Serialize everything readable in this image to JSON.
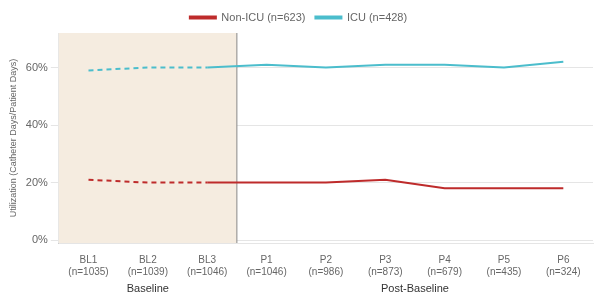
{
  "chart_data": {
    "type": "line",
    "categories": [
      [
        "BL1",
        "(n=1035)"
      ],
      [
        "BL2",
        "(n=1039)"
      ],
      [
        "BL3",
        "(n=1046)"
      ],
      [
        "P1",
        "(n=1046)"
      ],
      [
        "P2",
        "(n=986)"
      ],
      [
        "P3",
        "(n=873)"
      ],
      [
        "P4",
        "(n=679)"
      ],
      [
        "P5",
        "(n=435)"
      ],
      [
        "P6",
        "(n=324)"
      ]
    ],
    "series": [
      {
        "name": "Non-ICU (n=623)",
        "color": "#be2b2b",
        "values": [
          0.21,
          0.2,
          0.2,
          0.2,
          0.2,
          0.21,
          0.18,
          0.18,
          0.18
        ]
      },
      {
        "name": "ICU (n=428)",
        "color": "#4bbdcc",
        "values": [
          0.59,
          0.6,
          0.6,
          0.61,
          0.6,
          0.61,
          0.61,
          0.6,
          0.62
        ]
      }
    ],
    "y_label": "Utilization (Catheter Days/Patient Days)",
    "ylim": [
      -0.01,
      0.72
    ],
    "yticks": [
      {
        "value": 0.0,
        "label": "0%"
      },
      {
        "value": 0.2,
        "label": "20%"
      },
      {
        "value": 0.4,
        "label": "40%"
      },
      {
        "value": 0.6,
        "label": "60%"
      }
    ],
    "annotations": [
      {
        "text": "Baseline",
        "start": 0,
        "end": 2,
        "color": "#f5ece0",
        "line_style": "dashed"
      },
      {
        "text": "Post-Baseline",
        "start": 3,
        "end": 8
      }
    ],
    "grid": true,
    "legend": "top"
  }
}
